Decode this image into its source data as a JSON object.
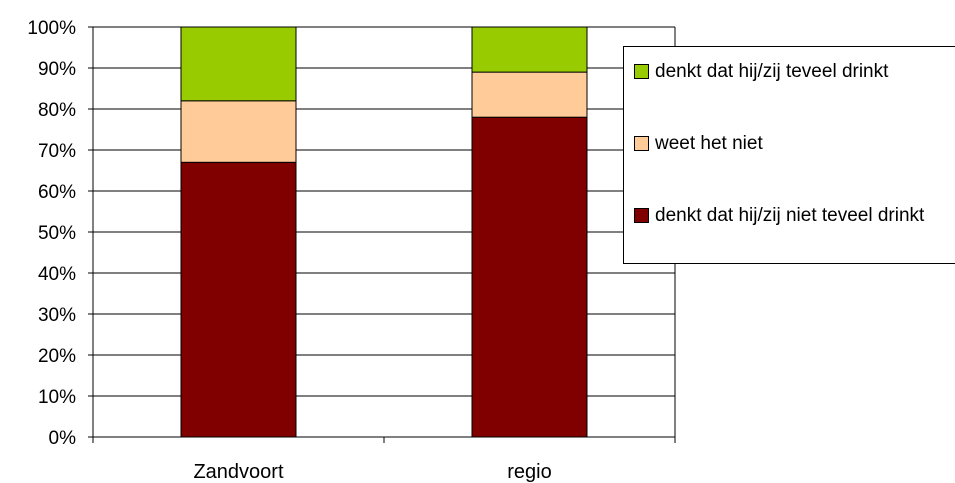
{
  "chart_data": {
    "type": "bar",
    "stacked": true,
    "categories": [
      "Zandvoort",
      "regio"
    ],
    "series": [
      {
        "name": "denkt dat hij/zij niet teveel drinkt",
        "values": [
          67,
          78
        ],
        "color": "#800000"
      },
      {
        "name": "weet het niet",
        "values": [
          15,
          11
        ],
        "color": "#FFCC99"
      },
      {
        "name": "denkt dat hij/zij teveel drinkt",
        "values": [
          18,
          11
        ],
        "color": "#99CC00"
      }
    ],
    "yticks": [
      "0%",
      "10%",
      "20%",
      "30%",
      "40%",
      "50%",
      "60%",
      "70%",
      "80%",
      "90%",
      "100%"
    ],
    "ylim": [
      0,
      100
    ],
    "grid": true,
    "legend_position": "right"
  }
}
